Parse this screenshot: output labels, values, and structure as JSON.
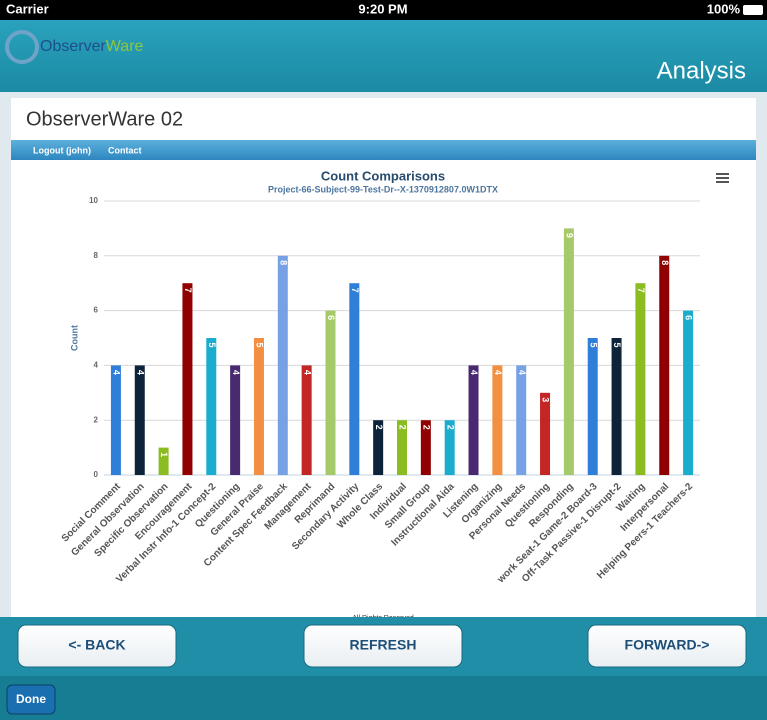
{
  "status_bar": {
    "carrier": "Carrier",
    "time": "9:20 PM",
    "battery": "100%"
  },
  "header": {
    "logo_part1": "Observer",
    "logo_part2": "Ware",
    "title": "Analysis"
  },
  "page_title": "ObserverWare 02",
  "nav": [
    "Logout (john)",
    "Contact"
  ],
  "chart_data": {
    "type": "bar",
    "title": "Count Comparisons",
    "subtitle": "Project-66-Subject-99-Test-Dr--X-1370912807.0W1DTX",
    "y_label": "Count",
    "categories": [
      "Social Comment",
      "General Observation",
      "Specific Observation",
      "Encouragement",
      "Verbal Instr Info-1 Concept-2",
      "Questioning",
      "General Praise",
      "Content Spec Feedback",
      "Management",
      "Reprimand",
      "Secondary Activity",
      "Whole Class",
      "Individual",
      "Small Group",
      "Instructional Aida",
      "Listening",
      "Organizing",
      "Personal Needs",
      "Questioning",
      "Responding",
      "work Seat-1 Game-2 Board-3",
      "Off-Task Passive-1 Disrupt-2",
      "Waiting",
      "Interpersonal",
      "Helping Peers-1 Teachers-2"
    ],
    "values": [
      4,
      4,
      1,
      7,
      5,
      4,
      5,
      8,
      4,
      6,
      7,
      2,
      2,
      2,
      2,
      4,
      4,
      4,
      3,
      9,
      5,
      5,
      7,
      8,
      6
    ],
    "colors": [
      "#2f7ed8",
      "#0d233a",
      "#8bbc21",
      "#910000",
      "#1aadce",
      "#492970",
      "#f28f43",
      "#77a1e5",
      "#c42525",
      "#a6c96a"
    ],
    "ylim": [
      0,
      10
    ],
    "yticks": [
      0,
      2,
      4,
      6,
      8,
      10
    ],
    "grid": true
  },
  "footer_note": "All Rights Reserved",
  "buttons": [
    "<- BACK",
    "REFRESH",
    "FORWARD->"
  ],
  "toolbar": {
    "done": "Done"
  }
}
